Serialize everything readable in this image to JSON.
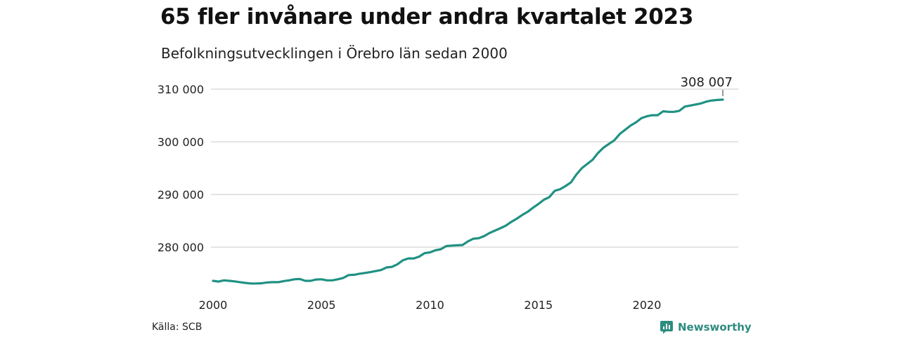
{
  "title": "65 fler invånare under andra kvartalet 2023",
  "subtitle": "Befolkningsutvecklingen i Örebro län sedan 2000",
  "source": "Källa: SCB",
  "brand": "Newsworthy",
  "colors": {
    "line": "#1f9183",
    "grid": "#dcdcdc",
    "text": "#222222",
    "brand": "#2e8b7f"
  },
  "chart_data": {
    "type": "line",
    "title": "65 fler invånare under andra kvartalet 2023",
    "subtitle": "Befolkningsutvecklingen i Örebro län sedan 2000",
    "xlabel": "",
    "ylabel": "",
    "xlim": [
      2000,
      2023.5
    ],
    "ylim": [
      272000,
      311000
    ],
    "x_ticks": [
      2000,
      2005,
      2010,
      2015,
      2020
    ],
    "x_tick_labels": [
      "2000",
      "2005",
      "2010",
      "2015",
      "2020"
    ],
    "y_ticks": [
      280000,
      290000,
      300000,
      310000
    ],
    "y_tick_labels": [
      "280 000",
      "290 000",
      "300 000",
      "310 000"
    ],
    "grid": "horizontal",
    "annotation": {
      "label": "308 007",
      "x": 2023.5,
      "y": 308007
    },
    "series": [
      {
        "values": [
          [
            2000.0,
            273600
          ],
          [
            2000.25,
            273450
          ],
          [
            2000.5,
            273700
          ],
          [
            2000.75,
            273600
          ],
          [
            2001.0,
            273500
          ],
          [
            2001.25,
            273350
          ],
          [
            2001.5,
            273200
          ],
          [
            2001.75,
            273100
          ],
          [
            2002.0,
            273100
          ],
          [
            2002.25,
            273150
          ],
          [
            2002.5,
            273300
          ],
          [
            2002.75,
            273350
          ],
          [
            2003.0,
            273350
          ],
          [
            2003.25,
            273550
          ],
          [
            2003.5,
            273700
          ],
          [
            2003.75,
            273900
          ],
          [
            2004.0,
            273950
          ],
          [
            2004.25,
            273600
          ],
          [
            2004.5,
            273600
          ],
          [
            2004.75,
            273850
          ],
          [
            2005.0,
            273900
          ],
          [
            2005.25,
            273700
          ],
          [
            2005.5,
            273700
          ],
          [
            2005.75,
            273900
          ],
          [
            2006.0,
            274150
          ],
          [
            2006.25,
            274700
          ],
          [
            2006.5,
            274750
          ],
          [
            2006.75,
            274950
          ],
          [
            2007.0,
            275100
          ],
          [
            2007.25,
            275250
          ],
          [
            2007.5,
            275450
          ],
          [
            2007.75,
            275650
          ],
          [
            2008.0,
            276150
          ],
          [
            2008.25,
            276250
          ],
          [
            2008.5,
            276750
          ],
          [
            2008.75,
            277500
          ],
          [
            2009.0,
            277850
          ],
          [
            2009.25,
            277850
          ],
          [
            2009.5,
            278200
          ],
          [
            2009.75,
            278850
          ],
          [
            2010.0,
            279000
          ],
          [
            2010.25,
            279400
          ],
          [
            2010.5,
            279600
          ],
          [
            2010.75,
            280200
          ],
          [
            2011.0,
            280300
          ],
          [
            2011.25,
            280350
          ],
          [
            2011.5,
            280400
          ],
          [
            2011.75,
            281100
          ],
          [
            2012.0,
            281600
          ],
          [
            2012.25,
            281700
          ],
          [
            2012.5,
            282100
          ],
          [
            2012.75,
            282700
          ],
          [
            2013.0,
            283150
          ],
          [
            2013.25,
            283600
          ],
          [
            2013.5,
            284100
          ],
          [
            2013.75,
            284800
          ],
          [
            2014.0,
            285400
          ],
          [
            2014.25,
            286100
          ],
          [
            2014.5,
            286700
          ],
          [
            2014.75,
            287500
          ],
          [
            2015.0,
            288200
          ],
          [
            2015.25,
            289000
          ],
          [
            2015.5,
            289500
          ],
          [
            2015.75,
            290700
          ],
          [
            2016.0,
            291000
          ],
          [
            2016.25,
            291600
          ],
          [
            2016.5,
            292300
          ],
          [
            2016.75,
            293800
          ],
          [
            2017.0,
            295000
          ],
          [
            2017.25,
            295800
          ],
          [
            2017.5,
            296600
          ],
          [
            2017.75,
            297900
          ],
          [
            2018.0,
            298900
          ],
          [
            2018.25,
            299600
          ],
          [
            2018.5,
            300300
          ],
          [
            2018.75,
            301500
          ],
          [
            2019.0,
            302300
          ],
          [
            2019.25,
            303100
          ],
          [
            2019.5,
            303700
          ],
          [
            2019.75,
            304500
          ],
          [
            2020.0,
            304850
          ],
          [
            2020.25,
            305050
          ],
          [
            2020.5,
            305050
          ],
          [
            2020.75,
            305800
          ],
          [
            2021.0,
            305700
          ],
          [
            2021.25,
            305700
          ],
          [
            2021.5,
            305900
          ],
          [
            2021.75,
            306700
          ],
          [
            2022.0,
            306900
          ],
          [
            2022.25,
            307100
          ],
          [
            2022.5,
            307300
          ],
          [
            2022.75,
            307650
          ],
          [
            2023.0,
            307850
          ],
          [
            2023.25,
            307950
          ],
          [
            2023.5,
            308007
          ]
        ]
      }
    ]
  }
}
